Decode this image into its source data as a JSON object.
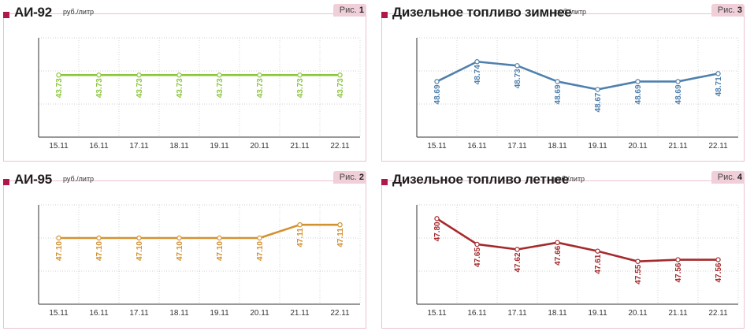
{
  "chart_data": [
    {
      "type": "line",
      "title": "АИ-92",
      "unit": "руб./литр",
      "figure_label": "Рис.",
      "figure_number": "1",
      "color": "#8cc63e",
      "categories": [
        "15.11",
        "16.11",
        "17.11",
        "18.11",
        "19.11",
        "20.11",
        "21.11",
        "22.11"
      ],
      "values": [
        43.73,
        43.73,
        43.73,
        43.73,
        43.73,
        43.73,
        43.73,
        43.73
      ],
      "labels": [
        "43.73",
        "43.73",
        "43.73",
        "43.73",
        "43.73",
        "43.73",
        "43.73",
        "43.73"
      ],
      "ylim": [
        43.68,
        43.76
      ],
      "grid": true
    },
    {
      "type": "line",
      "title": "АИ-95",
      "unit": "руб./литр",
      "figure_label": "Рис.",
      "figure_number": "2",
      "color": "#d4912f",
      "categories": [
        "15.11",
        "16.11",
        "17.11",
        "18.11",
        "19.11",
        "20.11",
        "21.11",
        "22.11"
      ],
      "values": [
        47.1,
        47.1,
        47.1,
        47.1,
        47.1,
        47.1,
        47.11,
        47.11
      ],
      "labels": [
        "47.10",
        "47.10",
        "47.10",
        "47.10",
        "47.10",
        "47.10",
        "47.11",
        "47.11"
      ],
      "ylim": [
        47.05,
        47.125
      ],
      "grid": true
    },
    {
      "type": "line",
      "title": "Дизельное топливо зимнее",
      "unit": "руб./литр",
      "figure_label": "Рис.",
      "figure_number": "3",
      "color": "#4f80ad",
      "categories": [
        "15.11",
        "16.11",
        "17.11",
        "18.11",
        "19.11",
        "20.11",
        "21.11",
        "22.11"
      ],
      "values": [
        48.69,
        48.74,
        48.73,
        48.69,
        48.67,
        48.69,
        48.69,
        48.71
      ],
      "labels": [
        "48.69",
        "48.74",
        "48.73",
        "48.69",
        "48.67",
        "48.69",
        "48.69",
        "48.71"
      ],
      "ylim": [
        48.55,
        48.8
      ],
      "grid": true
    },
    {
      "type": "line",
      "title": "Дизельное топливо летнее",
      "unit": "руб./литр",
      "figure_label": "Рис.",
      "figure_number": "4",
      "color": "#a62a2d",
      "categories": [
        "15.11",
        "16.11",
        "17.11",
        "18.11",
        "19.11",
        "20.11",
        "21.11",
        "22.11"
      ],
      "values": [
        47.8,
        47.65,
        47.62,
        47.66,
        47.61,
        47.55,
        47.56,
        47.56
      ],
      "labels": [
        "47.80",
        "47.65",
        "47.62",
        "47.66",
        "47.61",
        "47.55",
        "47.56",
        "47.56"
      ],
      "ylim": [
        47.3,
        47.88
      ],
      "grid": true
    }
  ]
}
